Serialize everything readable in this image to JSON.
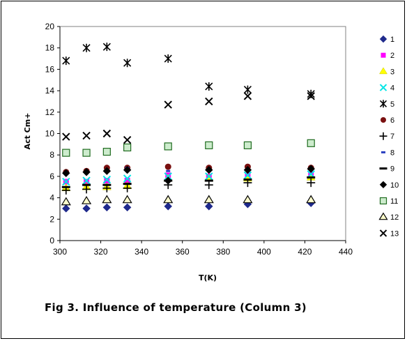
{
  "caption": "Fig 3. Influence of temperature (Column 3)",
  "chart_data": {
    "type": "scatter",
    "title": "",
    "xlabel": "T(K)",
    "ylabel": "Act Cm+",
    "xlim": [
      300,
      440
    ],
    "ylim": [
      0,
      20
    ],
    "xticks": [
      "300",
      "320",
      "340",
      "360",
      "380",
      "400",
      "420",
      "440"
    ],
    "yticks": [
      "0",
      "2",
      "4",
      "6",
      "8",
      "10",
      "12",
      "14",
      "16",
      "18",
      "20"
    ],
    "legend_position": "right",
    "x": [
      303,
      313,
      323,
      333,
      353,
      373,
      392,
      423
    ],
    "series": [
      {
        "name": "1",
        "marker": "diamond",
        "color": "#1f2a8c",
        "values": [
          3.0,
          3.0,
          3.1,
          3.1,
          3.2,
          3.2,
          3.4,
          3.5
        ]
      },
      {
        "name": "2",
        "marker": "square",
        "color": "#ff00ff",
        "values": [
          5.5,
          5.5,
          5.6,
          5.6,
          6.1,
          6.0,
          6.1,
          6.2
        ]
      },
      {
        "name": "3",
        "marker": "triangle",
        "color": "#ffff00",
        "values": [
          4.9,
          5.0,
          5.0,
          5.1,
          5.8,
          5.8,
          5.8,
          5.9
        ]
      },
      {
        "name": "4",
        "marker": "x",
        "color": "#00e6e6",
        "values": [
          5.5,
          5.6,
          5.7,
          5.8,
          6.0,
          6.0,
          6.1,
          6.2
        ]
      },
      {
        "name": "5",
        "marker": "star",
        "color": "#000000",
        "values": [
          16.8,
          18.0,
          18.1,
          16.6,
          17.0,
          14.4,
          14.1,
          13.7
        ]
      },
      {
        "name": "6",
        "marker": "circle",
        "color": "#7a1010",
        "values": [
          6.4,
          6.5,
          6.8,
          6.8,
          6.9,
          6.8,
          6.9,
          6.8
        ]
      },
      {
        "name": "7",
        "marker": "plus",
        "color": "#000000",
        "values": [
          4.7,
          4.8,
          4.9,
          4.9,
          5.2,
          5.2,
          5.4,
          5.4
        ]
      },
      {
        "name": "8",
        "marker": "dash",
        "color": "#2a3fc0",
        "values": [
          6.2,
          6.3,
          6.5,
          6.8,
          6.5,
          6.5,
          6.6,
          6.7
        ]
      },
      {
        "name": "9",
        "marker": "bar",
        "color": "#000000",
        "values": [
          5.0,
          5.2,
          5.2,
          5.3,
          5.6,
          5.6,
          5.7,
          5.9
        ]
      },
      {
        "name": "10",
        "marker": "diamond",
        "color": "#000000",
        "values": [
          6.3,
          6.4,
          6.5,
          6.6,
          5.6,
          6.6,
          6.6,
          6.7
        ]
      },
      {
        "name": "11",
        "marker": "square-open",
        "color": "#1f6b1f",
        "values": [
          8.2,
          8.2,
          8.3,
          8.7,
          8.8,
          8.9,
          8.9,
          9.1
        ]
      },
      {
        "name": "12",
        "marker": "triangle-open",
        "color": "#000000",
        "values": [
          3.6,
          3.7,
          3.8,
          3.8,
          3.8,
          3.8,
          3.8,
          3.8
        ]
      },
      {
        "name": "13",
        "marker": "x",
        "color": "#000000",
        "values": [
          9.7,
          9.8,
          10.0,
          9.4,
          12.7,
          13.0,
          13.5,
          13.5
        ]
      }
    ]
  }
}
